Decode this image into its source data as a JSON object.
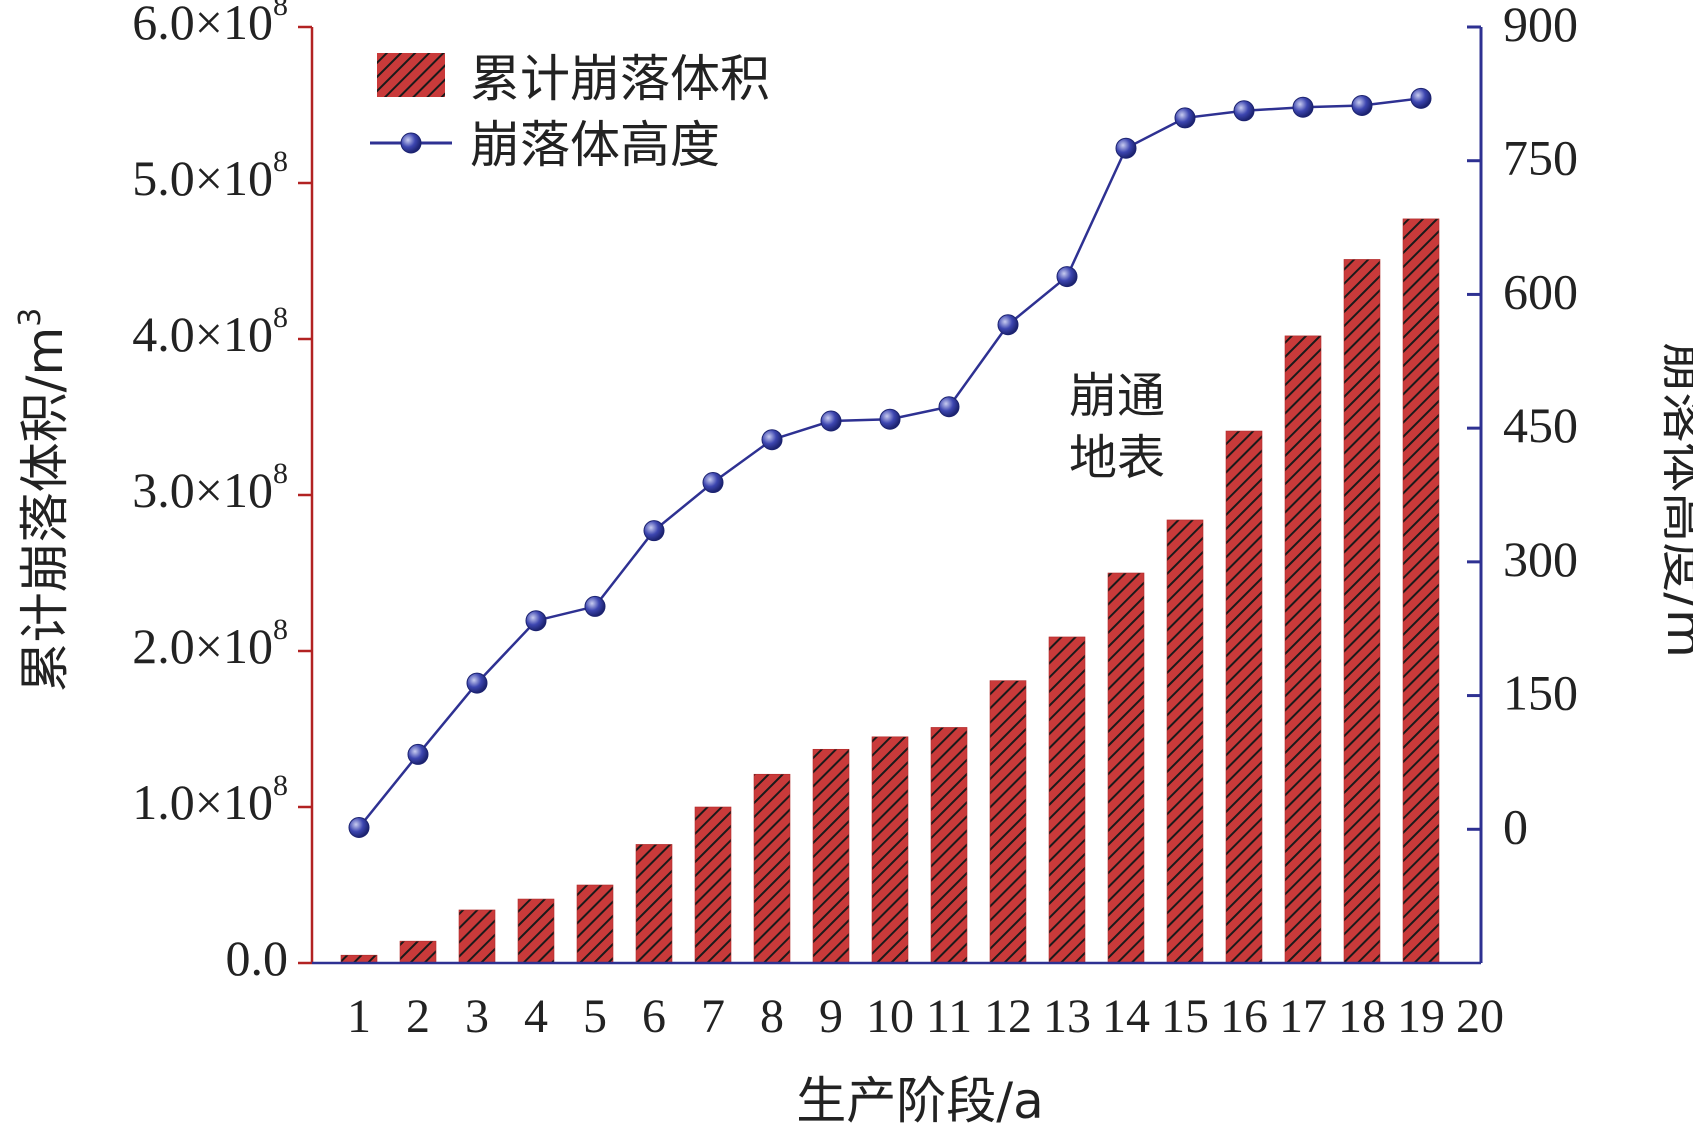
{
  "chart_data": {
    "type": "bar+line",
    "xlabel": "生产阶段/a",
    "x_ticks": [
      "1",
      "2",
      "3",
      "4",
      "5",
      "6",
      "7",
      "8",
      "9",
      "10",
      "11",
      "12",
      "13",
      "14",
      "15",
      "16",
      "17",
      "18",
      "19",
      "20"
    ],
    "categories": [
      1,
      2,
      3,
      4,
      5,
      6,
      7,
      8,
      9,
      10,
      11,
      12,
      13,
      14,
      15,
      16,
      17,
      18,
      19
    ],
    "left_axis": {
      "label": "累计崩落体积/m",
      "label_sup": "3",
      "lim": [
        0,
        600000000
      ],
      "color": "#b22222",
      "ticks": [
        {
          "value": 0,
          "mantissa": "0.0",
          "exp": ""
        },
        {
          "value": 100000000,
          "mantissa": "1.0×10",
          "exp": "8"
        },
        {
          "value": 200000000,
          "mantissa": "2.0×10",
          "exp": "8"
        },
        {
          "value": 300000000,
          "mantissa": "3.0×10",
          "exp": "8"
        },
        {
          "value": 400000000,
          "mantissa": "4.0×10",
          "exp": "8"
        },
        {
          "value": 500000000,
          "mantissa": "5.0×10",
          "exp": "8"
        },
        {
          "value": 600000000,
          "mantissa": "6.0×10",
          "exp": "8"
        }
      ]
    },
    "right_axis": {
      "label": "崩落体高度/m",
      "lim": [
        -150,
        900
      ],
      "color": "#2e3192",
      "ticks": [
        0,
        150,
        300,
        450,
        600,
        750,
        900
      ]
    },
    "series": [
      {
        "name": "累计崩落体积",
        "type": "bar",
        "axis": "left",
        "color": "#c93a3a",
        "hatch": "diagonal",
        "values": [
          5000000,
          14000000,
          34000000,
          41000000,
          50000000,
          76000000,
          100000000,
          121000000,
          137000000,
          145000000,
          151000000,
          181000000,
          209000000,
          250000000,
          284000000,
          341000000,
          402000000,
          451000000,
          477000000
        ]
      },
      {
        "name": "崩落体高度",
        "type": "line",
        "axis": "right",
        "color": "#2e3192",
        "values": [
          2,
          84,
          164,
          234,
          250,
          335,
          389,
          437,
          458,
          460,
          474,
          566,
          620,
          764,
          798,
          806,
          810,
          812,
          820
        ]
      }
    ],
    "annotation": {
      "lines": [
        "崩通",
        "地表"
      ],
      "at_category": 15
    },
    "legend_position": "top-left",
    "grid": false
  }
}
